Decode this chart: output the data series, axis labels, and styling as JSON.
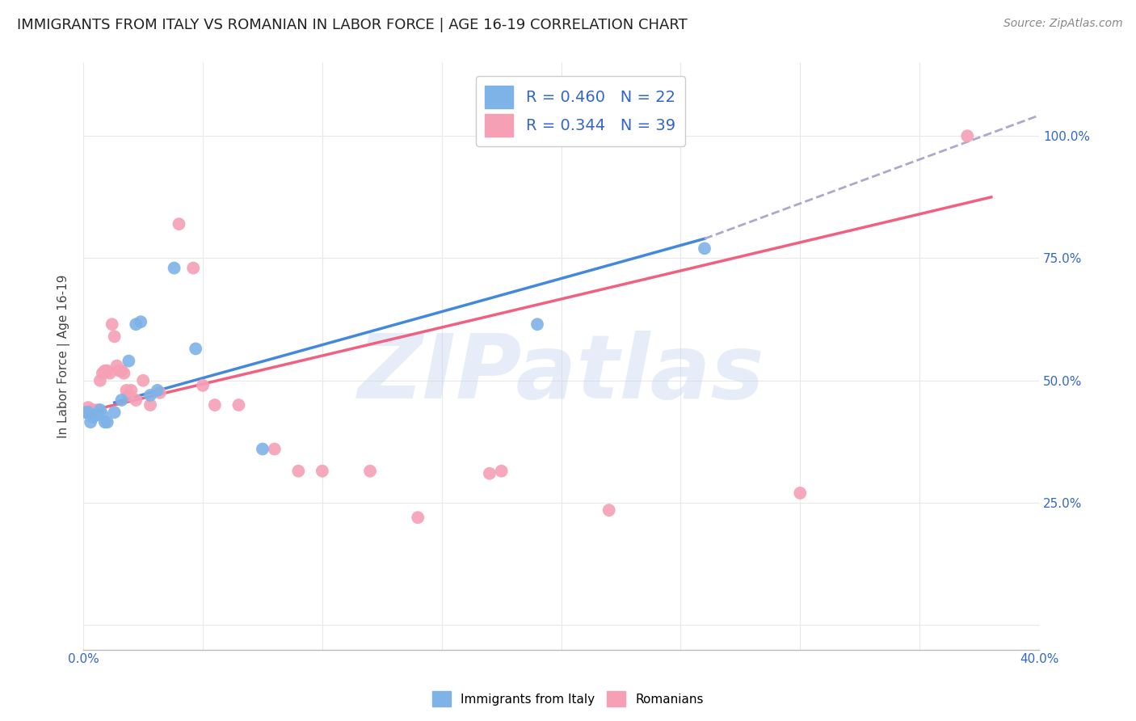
{
  "title": "IMMIGRANTS FROM ITALY VS ROMANIAN IN LABOR FORCE | AGE 16-19 CORRELATION CHART",
  "source": "Source: ZipAtlas.com",
  "ylabel": "In Labor Force | Age 16-19",
  "xlim": [
    0.0,
    0.4
  ],
  "ylim": [
    -0.05,
    1.15
  ],
  "ytick_vals": [
    0.0,
    0.25,
    0.5,
    0.75,
    1.0
  ],
  "xtick_vals": [
    0.0,
    0.05,
    0.1,
    0.15,
    0.2,
    0.25,
    0.3,
    0.35,
    0.4
  ],
  "italy_color": "#7EB3E8",
  "romania_color": "#F5A0B5",
  "italy_scatter": [
    [
      0.001,
      0.435
    ],
    [
      0.002,
      0.435
    ],
    [
      0.003,
      0.415
    ],
    [
      0.004,
      0.425
    ],
    [
      0.005,
      0.43
    ],
    [
      0.006,
      0.43
    ],
    [
      0.007,
      0.44
    ],
    [
      0.008,
      0.43
    ],
    [
      0.009,
      0.415
    ],
    [
      0.01,
      0.415
    ],
    [
      0.013,
      0.435
    ],
    [
      0.016,
      0.46
    ],
    [
      0.019,
      0.54
    ],
    [
      0.022,
      0.615
    ],
    [
      0.024,
      0.62
    ],
    [
      0.028,
      0.47
    ],
    [
      0.031,
      0.48
    ],
    [
      0.038,
      0.73
    ],
    [
      0.047,
      0.565
    ],
    [
      0.075,
      0.36
    ],
    [
      0.19,
      0.615
    ],
    [
      0.26,
      0.77
    ]
  ],
  "romania_scatter": [
    [
      0.001,
      0.435
    ],
    [
      0.002,
      0.445
    ],
    [
      0.003,
      0.435
    ],
    [
      0.004,
      0.44
    ],
    [
      0.005,
      0.435
    ],
    [
      0.006,
      0.44
    ],
    [
      0.007,
      0.5
    ],
    [
      0.008,
      0.515
    ],
    [
      0.009,
      0.52
    ],
    [
      0.01,
      0.52
    ],
    [
      0.011,
      0.515
    ],
    [
      0.012,
      0.615
    ],
    [
      0.013,
      0.59
    ],
    [
      0.014,
      0.53
    ],
    [
      0.015,
      0.52
    ],
    [
      0.016,
      0.52
    ],
    [
      0.017,
      0.515
    ],
    [
      0.018,
      0.48
    ],
    [
      0.019,
      0.47
    ],
    [
      0.02,
      0.48
    ],
    [
      0.022,
      0.46
    ],
    [
      0.025,
      0.5
    ],
    [
      0.028,
      0.45
    ],
    [
      0.032,
      0.475
    ],
    [
      0.04,
      0.82
    ],
    [
      0.046,
      0.73
    ],
    [
      0.05,
      0.49
    ],
    [
      0.055,
      0.45
    ],
    [
      0.065,
      0.45
    ],
    [
      0.08,
      0.36
    ],
    [
      0.09,
      0.315
    ],
    [
      0.1,
      0.315
    ],
    [
      0.12,
      0.315
    ],
    [
      0.14,
      0.22
    ],
    [
      0.17,
      0.31
    ],
    [
      0.175,
      0.315
    ],
    [
      0.22,
      0.235
    ],
    [
      0.3,
      0.27
    ],
    [
      0.37,
      1.0
    ]
  ],
  "italy_R": 0.46,
  "italy_N": 22,
  "romania_R": 0.344,
  "romania_N": 39,
  "italy_line_solid": [
    [
      0.013,
      0.455
    ],
    [
      0.26,
      0.79
    ]
  ],
  "italy_line_dashed": [
    [
      0.26,
      0.79
    ],
    [
      0.41,
      1.06
    ]
  ],
  "romania_line": [
    [
      0.0,
      0.435
    ],
    [
      0.38,
      0.875
    ]
  ],
  "watermark_text": "ZIPatlas",
  "legend_R_color": "#3366CC",
  "title_fontsize": 13,
  "grid_color": "#e8e8e8",
  "tick_color": "#3366CC",
  "italy_line_color": "#4488DD",
  "romania_line_color": "#F06080",
  "dashed_line_color": "#AAAACC"
}
